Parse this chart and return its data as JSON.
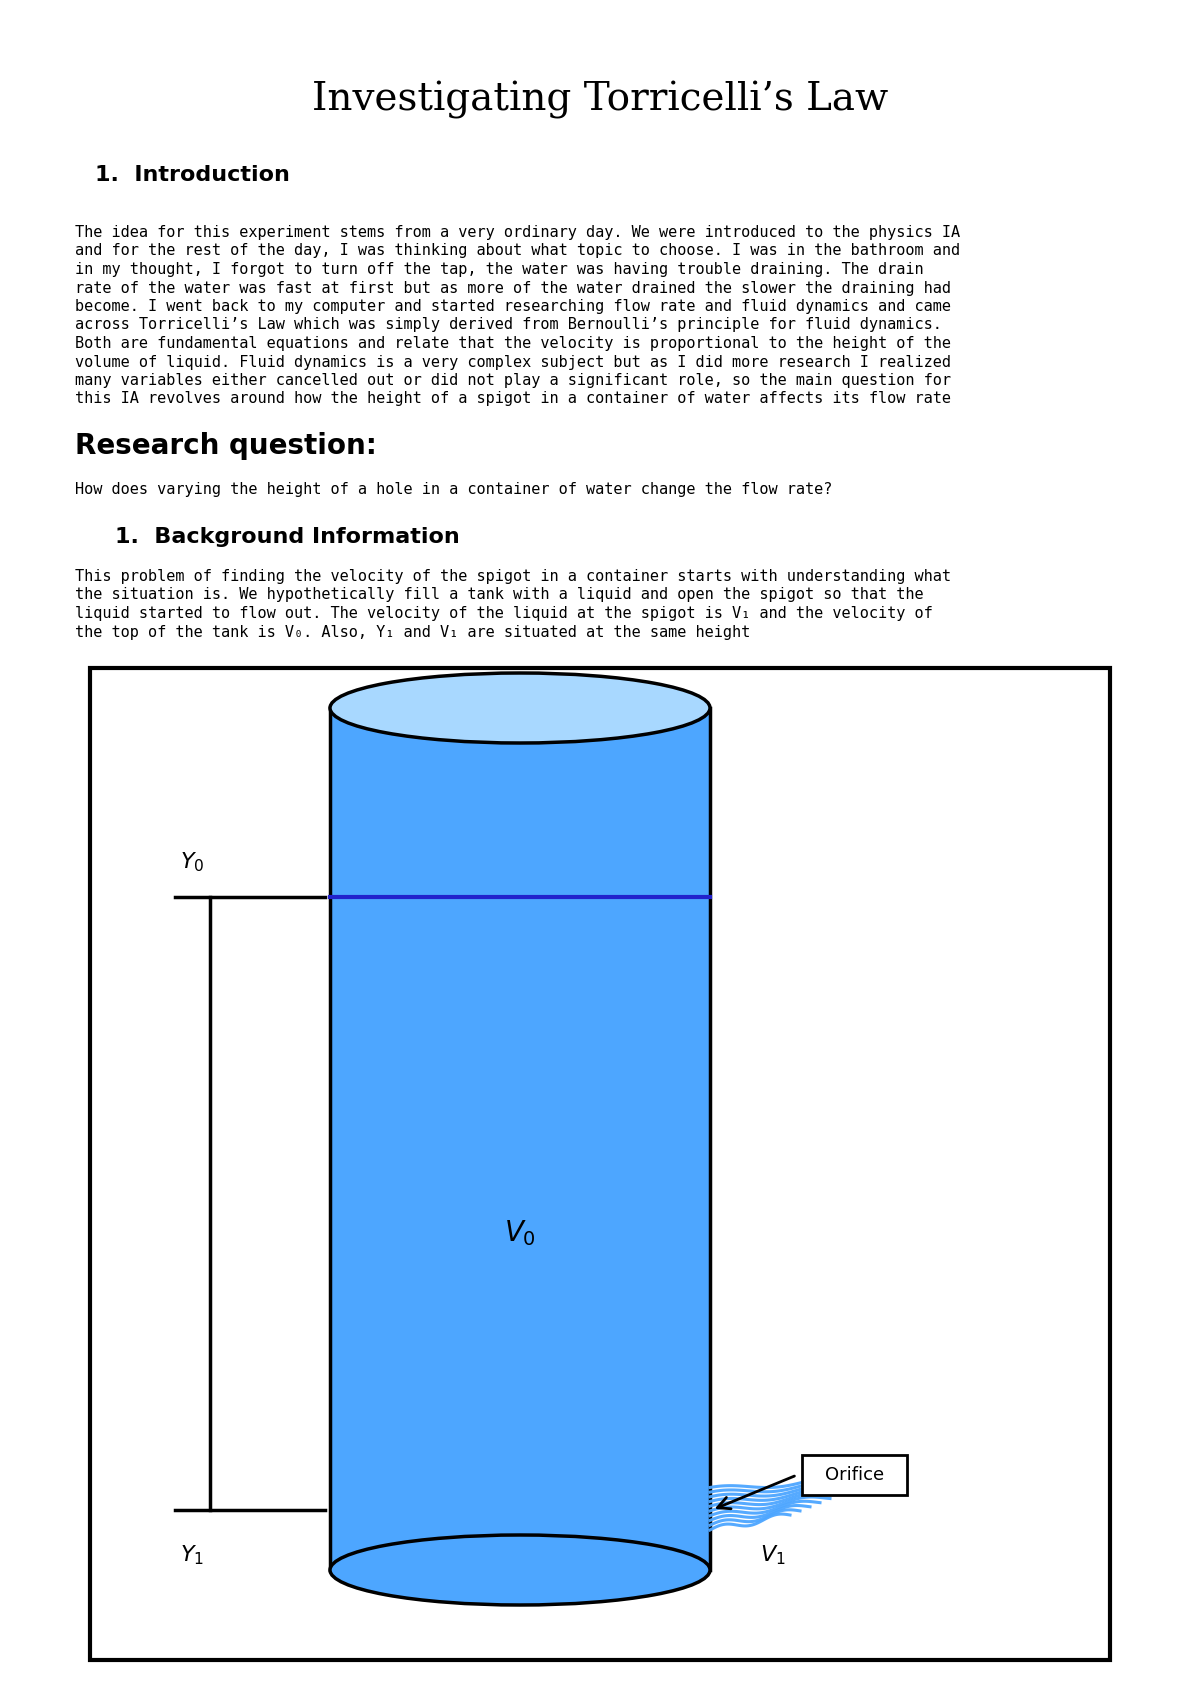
{
  "title": "Investigating Torricelli’s Law",
  "title_fontsize": 28,
  "section1_heading": "1.  Introduction",
  "section1_heading_fontsize": 16,
  "intro_text": "The idea for this experiment stems from a very ordinary day. We were introduced to the physics IA and for the rest of the day, I was thinking about what topic to choose. I was in the bathroom and in my thought, I forgot to turn off the tap, the water was having trouble draining. The drain rate of the water was fast at first but as more of the water drained the slower the draining had become. I went back to my computer and started researching flow rate and fluid dynamics and came across Torricelli’s Law which was simply derived from Bernoulli’s principle for fluid dynamics. Both are fundamental equations and relate that the velocity is proportional to the height of the volume of liquid. Fluid dynamics is a very complex subject but as I did more research I realized many variables either cancelled out or did not play a significant role, so the main question for this IA revolves around how the height of a spigot in a container of water affects its flow rate",
  "intro_fontsize": 11,
  "rq_heading": "Research question:",
  "rq_heading_fontsize": 20,
  "rq_text": "How does varying the height of a hole in a container of water change the flow rate?",
  "rq_fontsize": 11,
  "section2_heading": "1.  Background Information",
  "section2_heading_fontsize": 16,
  "bg_text": "This problem of finding the velocity of the spigot in a container starts with understanding what the situation is. We hypothetically fill a tank with a liquid and open the spigot so that the liquid started to flow out. The velocity of the liquid at the spigot is V₁ and the velocity of the top of the tank is V₀. Also, Y₁ and V₁ are situated at the same height",
  "bg_fontsize": 11,
  "bg_color": "#ffffff",
  "text_color": "#000000",
  "blue_color": "#4da6ff",
  "light_blue": "#7dc8ff",
  "dark_blue": "#2222cc"
}
